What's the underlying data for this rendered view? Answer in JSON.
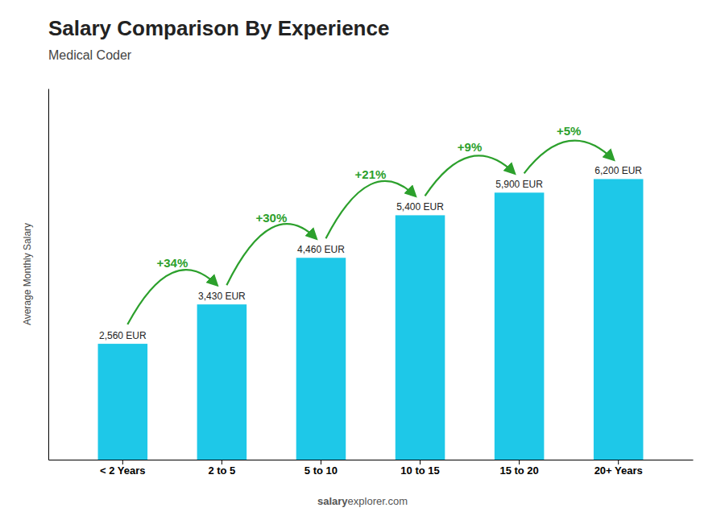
{
  "chart_data": {
    "type": "bar",
    "title": "Salary Comparison By Experience",
    "subtitle": "Medical Coder",
    "categories": [
      "< 2 Years",
      "2 to 5",
      "5 to 10",
      "10 to 15",
      "15 to 20",
      "20+ Years"
    ],
    "values": [
      2560,
      3430,
      4460,
      5400,
      5900,
      6200
    ],
    "value_labels": [
      "2,560 EUR",
      "3,430 EUR",
      "4,460 EUR",
      "5,400 EUR",
      "5,900 EUR",
      "6,200 EUR"
    ],
    "data_labels": true,
    "color": "#1ec8e8",
    "y_label": "Average Monthly Salary",
    "annotations": [
      "+34%",
      "+30%",
      "+21%",
      "+9%",
      "+5%"
    ],
    "watermark": [
      "salary",
      "explorer.com"
    ],
    "ylim": [
      0,
      8200
    ],
    "yticks": [],
    "tick_labels": "x",
    "grid": false
  }
}
